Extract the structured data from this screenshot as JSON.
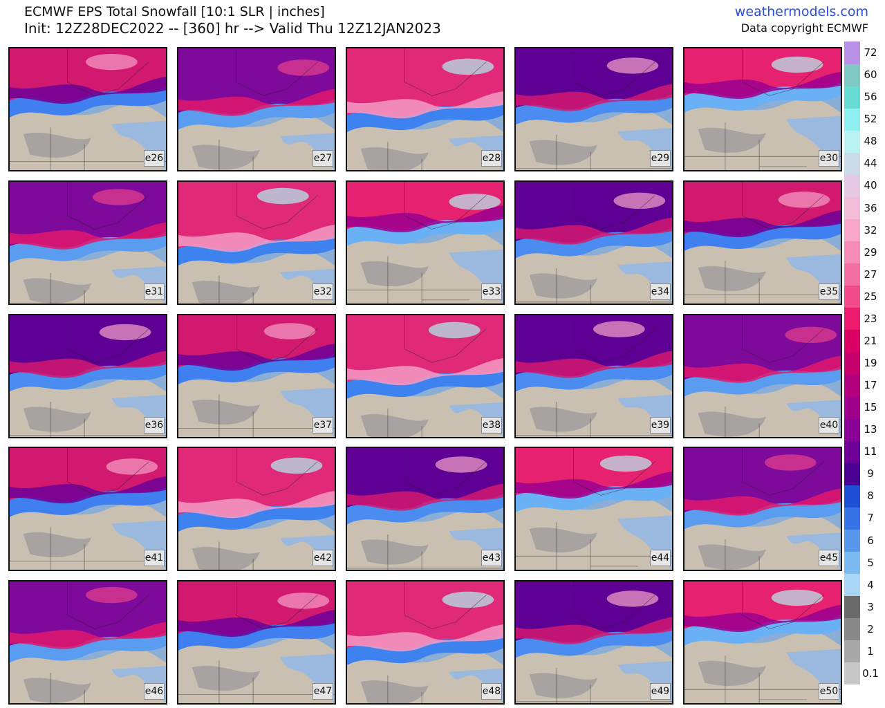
{
  "header": {
    "title": "ECMWF EPS Total Snowfall [10:1 SLR | inches]",
    "subtitle": "Init: 12Z28DEC2022 -- [360] hr --> Valid Thu 12Z12JAN2023",
    "site": "weathermodels.com",
    "copyright": "Data copyright ECMWF"
  },
  "panels": [
    {
      "label": "e26",
      "style": 0
    },
    {
      "label": "e27",
      "style": 1
    },
    {
      "label": "e28",
      "style": 2
    },
    {
      "label": "e29",
      "style": 3
    },
    {
      "label": "e30",
      "style": 4
    },
    {
      "label": "e31",
      "style": 1
    },
    {
      "label": "e32",
      "style": 2
    },
    {
      "label": "e33",
      "style": 4
    },
    {
      "label": "e34",
      "style": 3
    },
    {
      "label": "e35",
      "style": 0
    },
    {
      "label": "e36",
      "style": 3
    },
    {
      "label": "e37",
      "style": 0
    },
    {
      "label": "e38",
      "style": 2
    },
    {
      "label": "e39",
      "style": 3
    },
    {
      "label": "e40",
      "style": 1
    },
    {
      "label": "e41",
      "style": 0
    },
    {
      "label": "e42",
      "style": 2
    },
    {
      "label": "e43",
      "style": 3
    },
    {
      "label": "e44",
      "style": 4
    },
    {
      "label": "e45",
      "style": 1
    },
    {
      "label": "e46",
      "style": 1
    },
    {
      "label": "e47",
      "style": 0
    },
    {
      "label": "e48",
      "style": 2
    },
    {
      "label": "e49",
      "style": 3
    },
    {
      "label": "e50",
      "style": 4
    }
  ],
  "colorbar": {
    "levels": [
      "0.1",
      "1",
      "2",
      "3",
      "4",
      "5",
      "6",
      "7",
      "8",
      "9",
      "11",
      "13",
      "15",
      "17",
      "19",
      "21",
      "23",
      "25",
      "27",
      "29",
      "32",
      "36",
      "40",
      "44",
      "48",
      "52",
      "56",
      "60",
      "72"
    ],
    "colors": [
      "#c8c8c8",
      "#a8a8a8",
      "#888888",
      "#6a6a6a",
      "#a8d6f7",
      "#7cbaf2",
      "#5797ec",
      "#3673e6",
      "#1f4fd6",
      "#4b0093",
      "#6e0099",
      "#8a0096",
      "#a0008c",
      "#b4007e",
      "#c8006e",
      "#dc0064",
      "#ee1a6e",
      "#f24a8a",
      "#f56fa3",
      "#f78bb7",
      "#f9a7c9",
      "#f2bdd8",
      "#e6c9e4",
      "#ccdbe8",
      "#b9f3f3",
      "#8ef0f0",
      "#66dcd5",
      "#7ec9c3",
      "#b991e6"
    ]
  }
}
